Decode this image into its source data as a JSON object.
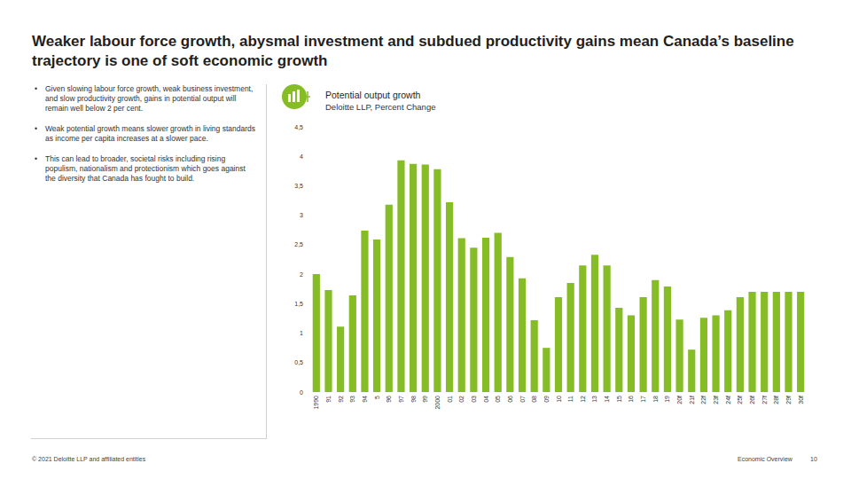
{
  "slide": {
    "title": "Weaker labour force growth, abysmal investment and subdued productivity gains mean Canada’s baseline trajectory is one of soft economic growth",
    "bullets": [
      "Given slowing labour force growth, weak business investment, and slow productivity growth, gains in potential output will remain well below 2 per cent.",
      "Weak potential growth means slower growth in living standards as income per capita increases at a slower pace.",
      "This can lead to broader, societal risks including rising populism, nationalism and protectionism which goes against the diversity that Canada has fought to build."
    ],
    "footer_left": "© 2021 Deloitte LLP and affiliated entities",
    "footer_section": "Economic Overview",
    "page_number": "10"
  },
  "chart_data": {
    "type": "bar",
    "title": "Potential output growth",
    "subtitle": "Deloitte LLP, Percent Change",
    "categories": [
      "1990",
      "91",
      "92",
      "93",
      "94",
      "5",
      "96",
      "97",
      "98",
      "99",
      "2000",
      "01",
      "02",
      "03",
      "04",
      "05",
      "06",
      "07",
      "08",
      "09",
      "10",
      "11",
      "12",
      "13",
      "14",
      "15",
      "16",
      "17",
      "18",
      "19",
      "20f",
      "21f",
      "22f",
      "23f",
      "24f",
      "25f",
      "26f",
      "27f",
      "28f",
      "29f",
      "30f"
    ],
    "values": [
      2.0,
      1.73,
      1.11,
      1.64,
      2.74,
      2.59,
      3.18,
      3.93,
      3.87,
      3.86,
      3.78,
      3.22,
      2.61,
      2.45,
      2.62,
      2.7,
      2.29,
      1.93,
      1.22,
      0.75,
      1.61,
      1.85,
      2.15,
      2.33,
      2.15,
      1.43,
      1.3,
      1.61,
      1.9,
      1.79,
      1.23,
      0.72,
      1.26,
      1.3,
      1.39,
      1.61,
      1.7,
      1.7,
      1.7,
      1.7,
      1.7
    ],
    "color": "#86bc25",
    "ylim": [
      0,
      4.5
    ],
    "yticks": [
      0,
      {
        "value": 0.5,
        "label": "0,5"
      },
      1,
      {
        "value": 1.5,
        "label": "1,5"
      },
      2,
      {
        "value": 2.5,
        "label": "2,5"
      },
      3,
      {
        "value": 3.5,
        "label": "3,5"
      },
      4,
      {
        "value": 4.5,
        "label": "4,5"
      }
    ],
    "grid": false,
    "data_labels": false
  }
}
